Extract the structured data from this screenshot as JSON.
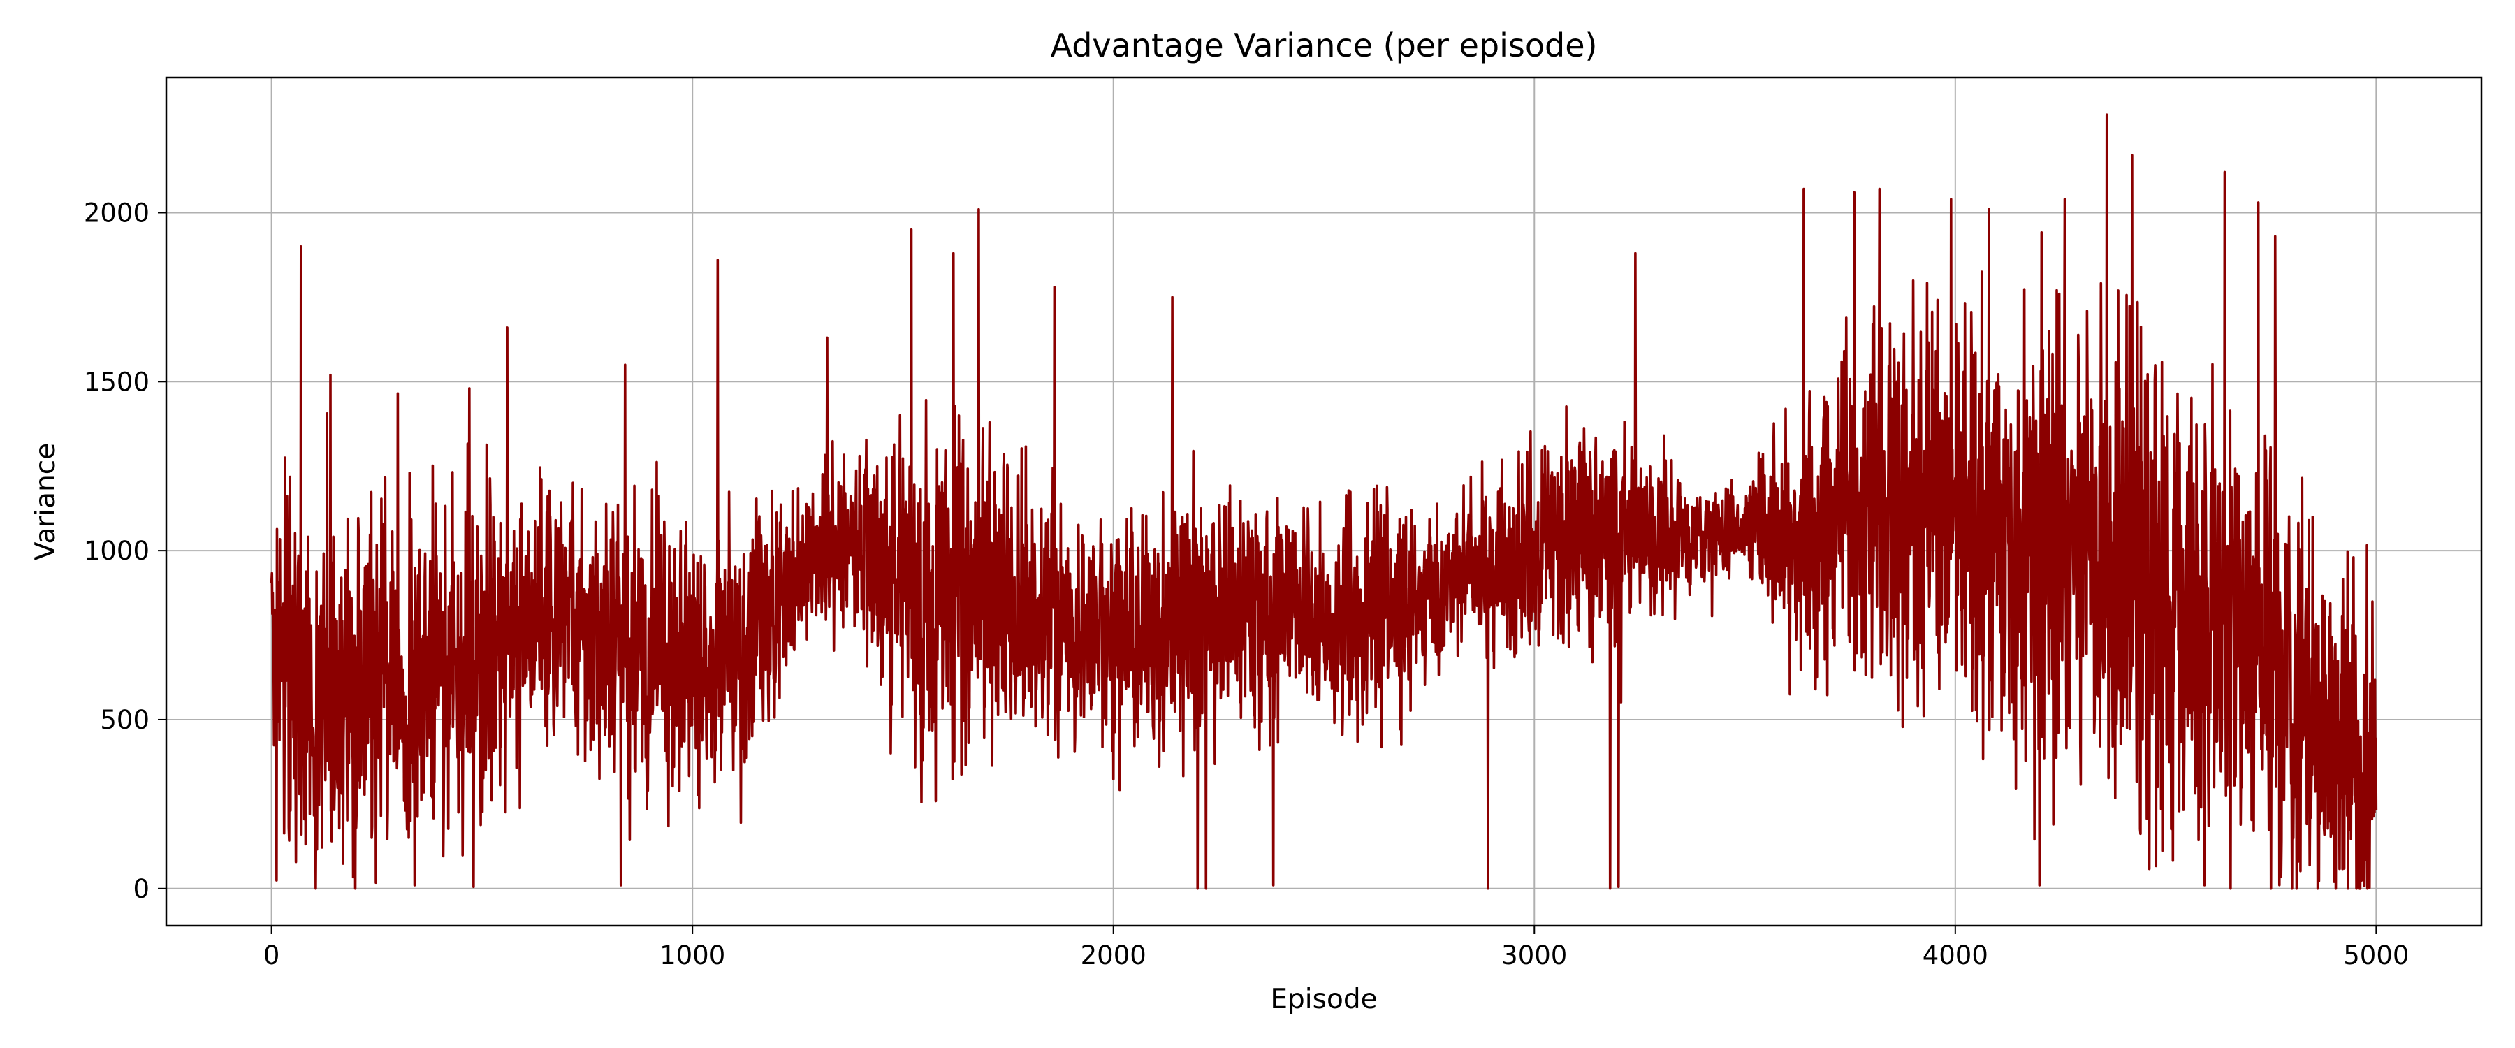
{
  "chart_data": {
    "type": "line",
    "title": "Advantage Variance (per episode)",
    "xlabel": "Episode",
    "ylabel": "Variance",
    "xlim": [
      -250,
      5250
    ],
    "ylim": [
      -110,
      2400
    ],
    "xticks": [
      0,
      1000,
      2000,
      3000,
      4000,
      5000
    ],
    "yticks": [
      0,
      500,
      1000,
      1500,
      2000
    ],
    "xtick_labels": [
      "0",
      "1000",
      "2000",
      "3000",
      "4000",
      "5000"
    ],
    "ytick_labels": [
      "0",
      "500",
      "1000",
      "1500",
      "2000"
    ],
    "grid": true,
    "legend": "none",
    "colors": {
      "series": "#8b0000",
      "grid": "#b0b0b0",
      "axes": "#000000"
    },
    "series": [
      {
        "episodes": [
          0,
          5000
        ],
        "envelope": {
          "x": [
            0,
            100,
            200,
            300,
            400,
            500,
            600,
            700,
            800,
            900,
            1000,
            1100,
            1200,
            1300,
            1400,
            1500,
            1600,
            1700,
            1800,
            1900,
            2000,
            2100,
            2200,
            2300,
            2400,
            2500,
            2600,
            2700,
            2800,
            2900,
            3000,
            3100,
            3200,
            3300,
            3400,
            3500,
            3600,
            3700,
            3800,
            3900,
            4000,
            4100,
            4200,
            4300,
            4400,
            4500,
            4600,
            4700,
            4800,
            4900,
            5000
          ],
          "center": [
            650,
            600,
            580,
            600,
            620,
            700,
            800,
            820,
            700,
            680,
            650,
            650,
            850,
            1000,
            1000,
            900,
            850,
            850,
            830,
            800,
            750,
            760,
            800,
            820,
            820,
            780,
            800,
            850,
            900,
            950,
            1000,
            1050,
            1050,
            1050,
            1050,
            1050,
            1050,
            1050,
            1100,
            1100,
            1100,
            1050,
            1000,
            1000,
            950,
            850,
            800,
            750,
            600,
            450,
            300
          ],
          "spread": [
            400,
            450,
            380,
            350,
            380,
            400,
            320,
            300,
            350,
            350,
            330,
            330,
            250,
            170,
            230,
            350,
            380,
            380,
            350,
            300,
            280,
            320,
            330,
            280,
            250,
            240,
            250,
            220,
            200,
            200,
            250,
            270,
            260,
            180,
            130,
            120,
            280,
            360,
            420,
            460,
            500,
            560,
            620,
            620,
            600,
            560,
            560,
            520,
            480,
            450,
            400
          ]
        },
        "peaks": [
          [
            70,
            1900
          ],
          [
            140,
            1520
          ],
          [
            300,
            1465
          ],
          [
            470,
            1480
          ],
          [
            560,
            1660
          ],
          [
            840,
            1550
          ],
          [
            1060,
            1860
          ],
          [
            1320,
            1630
          ],
          [
            1520,
            1950
          ],
          [
            1620,
            1880
          ],
          [
            1680,
            2010
          ],
          [
            1860,
            1780
          ],
          [
            2140,
            1750
          ],
          [
            3240,
            1880
          ],
          [
            3640,
            2070
          ],
          [
            3760,
            2060
          ],
          [
            3820,
            2070
          ],
          [
            3990,
            2040
          ],
          [
            4080,
            2010
          ],
          [
            4260,
            2040
          ],
          [
            4360,
            2290
          ],
          [
            4420,
            2170
          ],
          [
            4640,
            2120
          ],
          [
            4720,
            2030
          ],
          [
            4760,
            1930
          ]
        ],
        "troughs": [
          [
            340,
            10
          ],
          [
            480,
            5
          ],
          [
            830,
            10
          ],
          [
            2200,
            0
          ],
          [
            2220,
            0
          ],
          [
            2380,
            10
          ],
          [
            2890,
            0
          ],
          [
            3180,
            0
          ],
          [
            3200,
            5
          ],
          [
            4200,
            10
          ],
          [
            4900,
            20
          ]
        ]
      }
    ]
  }
}
